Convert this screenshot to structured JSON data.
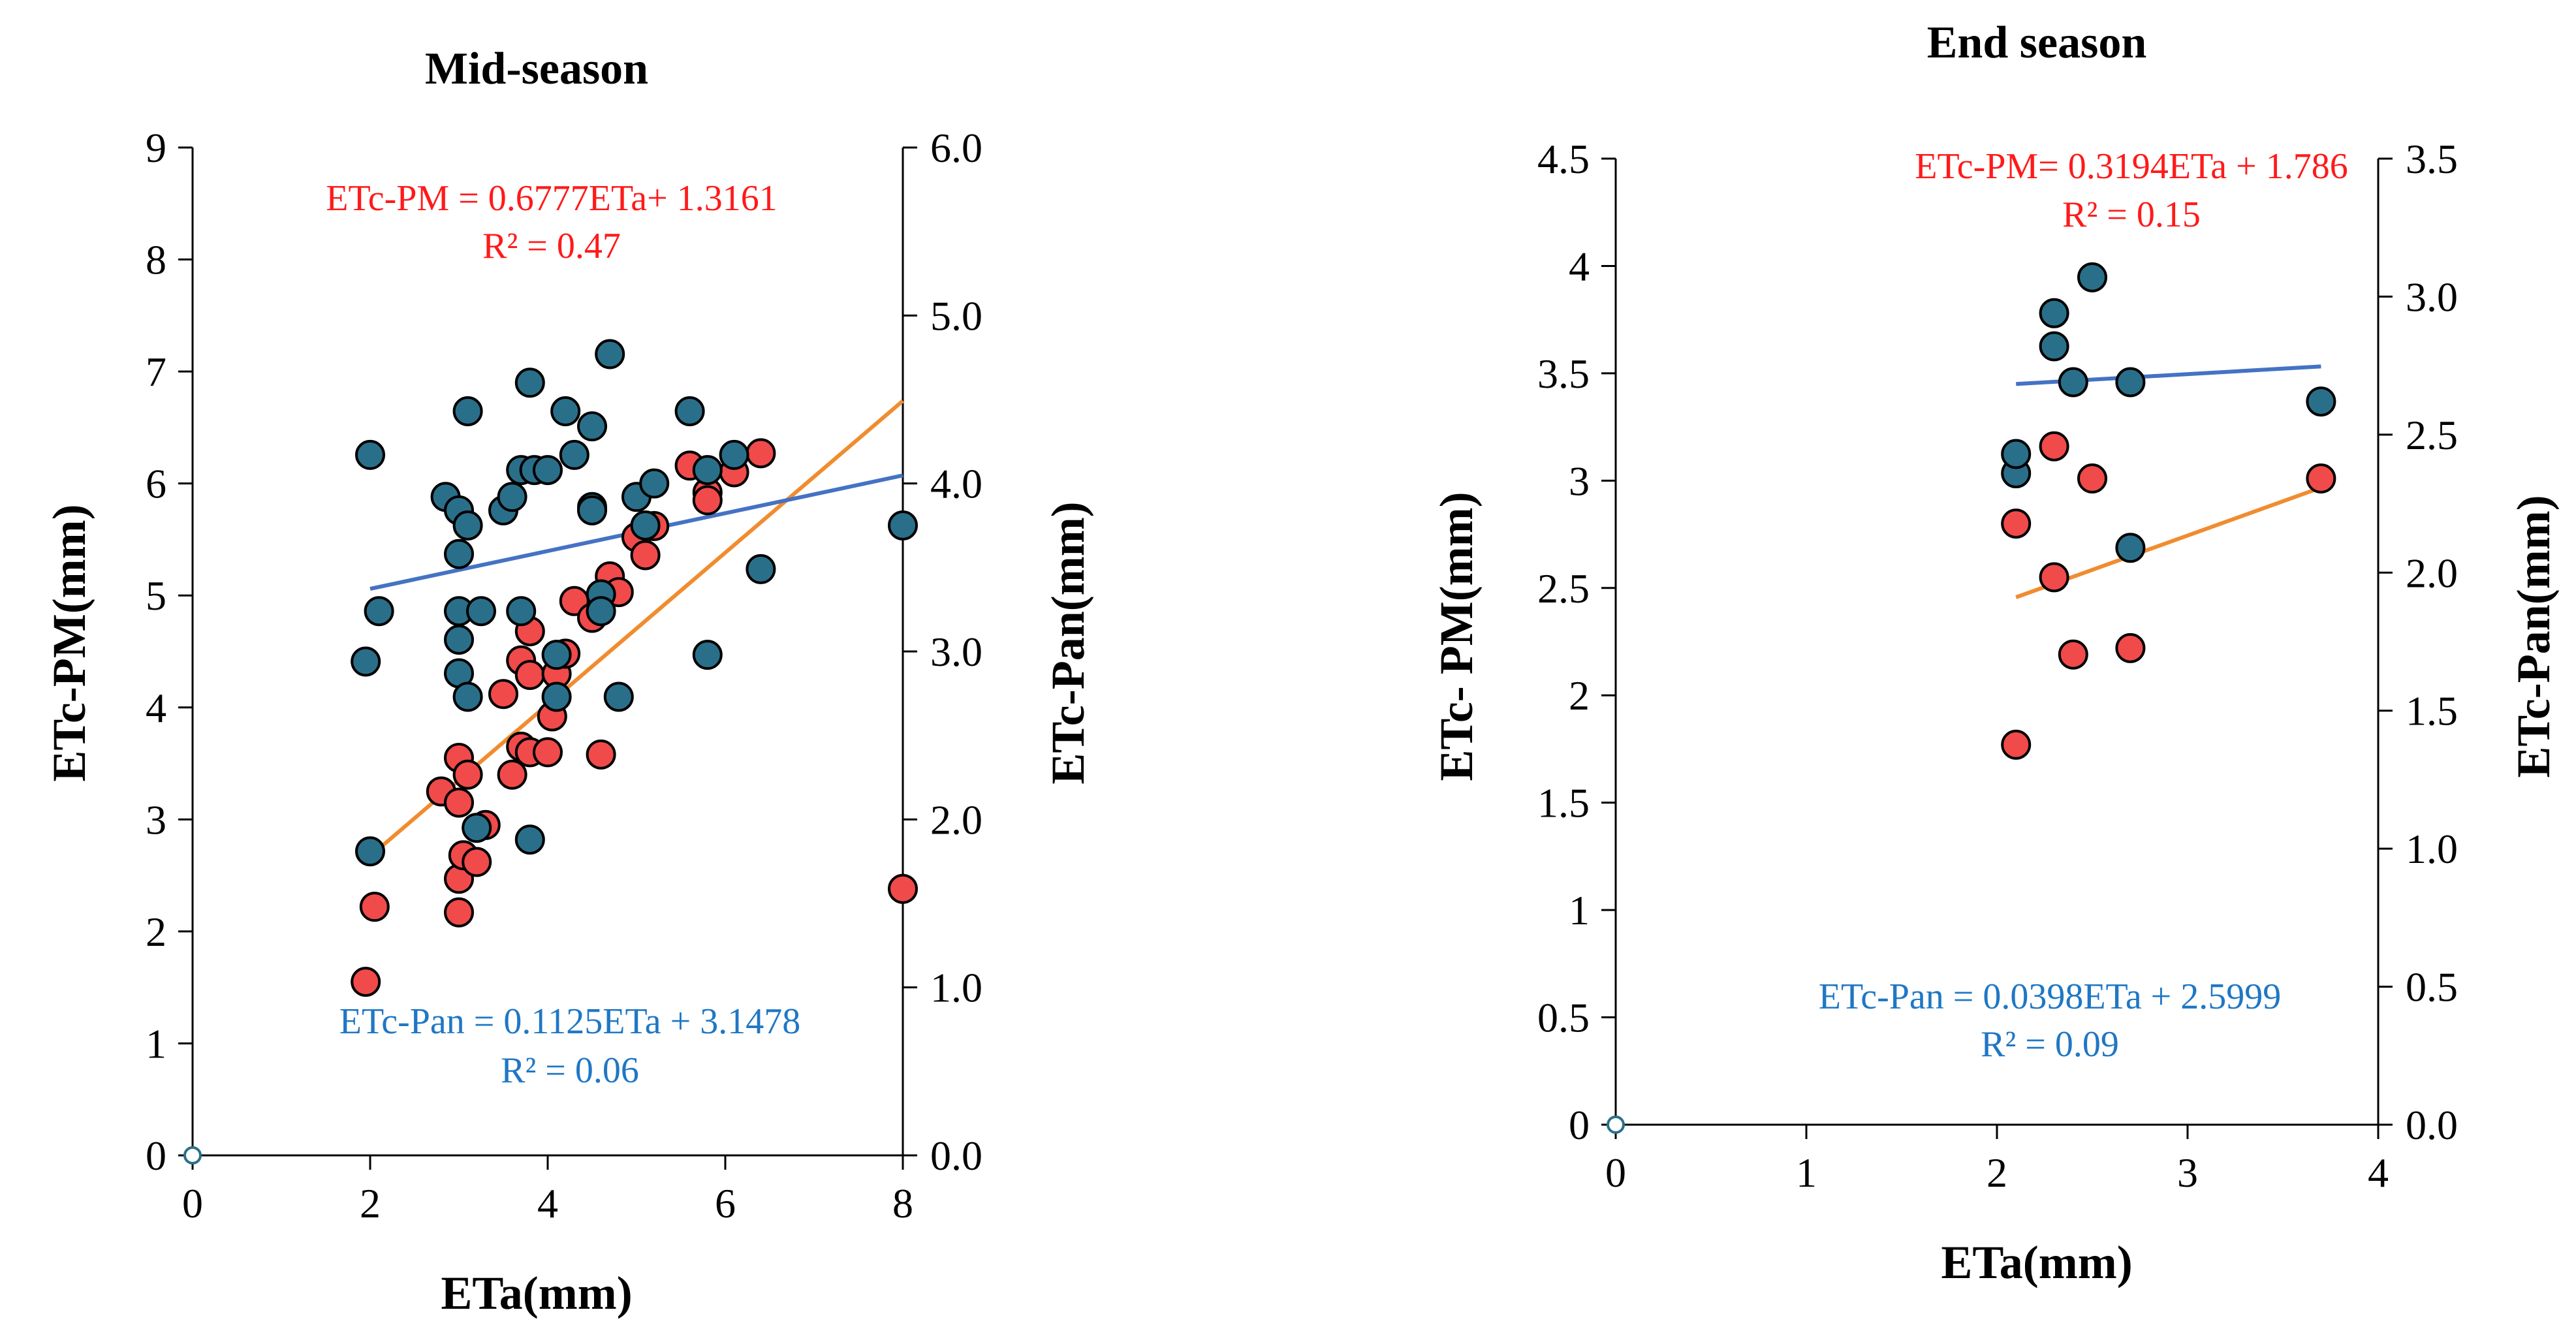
{
  "colors": {
    "pm_series": "#f04a4a",
    "pan_series": "#2a6f8a",
    "pm_trend": "#f08c30",
    "pan_trend": "#4472c4",
    "pm_equation": "#ff1a1a",
    "pan_equation": "#1f77c4",
    "marker_edge": "#000000"
  },
  "chart_data": [
    {
      "type": "scatter",
      "title": "Mid-season",
      "xlabel": "ETa(mm)",
      "ylabel_left": "ETc-PM(mm)",
      "ylabel_right": "ETc-Pan(mm)",
      "xlim": [
        0,
        8
      ],
      "ylim_left": [
        0,
        9
      ],
      "ylim_right": [
        0,
        6
      ],
      "xticks": [
        "0",
        "2",
        "4",
        "6",
        "8"
      ],
      "yticks_left": [
        "0",
        "1",
        "2",
        "3",
        "4",
        "5",
        "6",
        "7",
        "8",
        "9"
      ],
      "yticks_right": [
        "0.0",
        "1.0",
        "2.0",
        "3.0",
        "4.0",
        "5.0",
        "6.0"
      ],
      "equation_pm": "ETc-PM = 0.6777ETa+ 1.3161",
      "r2_pm": "R² = 0.47",
      "equation_pan": "ETc-Pan = 0.1125ETa + 3.1478",
      "r2_pan": "R² = 0.06",
      "trend_pm": {
        "slope": 0.6777,
        "intercept": 1.3161,
        "x_range": [
          1.95,
          8.0
        ],
        "axis": "left"
      },
      "trend_pan": {
        "slope": 0.1125,
        "intercept": 3.1478,
        "x_range": [
          2.0,
          8.0
        ],
        "axis": "right"
      },
      "series": [
        {
          "name": "ETc-PM",
          "axis": "left",
          "x": [
            1.95,
            2.05,
            2.8,
            3.0,
            3.0,
            3.0,
            3.0,
            3.05,
            3.1,
            3.2,
            3.3,
            3.5,
            3.6,
            3.7,
            3.7,
            3.8,
            3.8,
            3.8,
            4.0,
            4.05,
            4.1,
            4.2,
            4.3,
            4.5,
            4.6,
            4.7,
            4.8,
            5.0,
            5.1,
            5.2,
            5.6,
            5.8,
            5.8,
            6.1,
            6.4,
            8.0
          ],
          "y": [
            1.55,
            2.22,
            3.25,
            3.55,
            3.15,
            2.47,
            2.17,
            2.68,
            3.4,
            2.62,
            2.95,
            4.12,
            3.4,
            3.65,
            4.42,
            4.29,
            4.68,
            3.6,
            3.6,
            3.92,
            4.3,
            4.48,
            4.95,
            4.8,
            3.58,
            5.17,
            5.03,
            5.52,
            5.36,
            5.62,
            6.16,
            5.92,
            5.85,
            6.1,
            6.27,
            2.38
          ]
        },
        {
          "name": "ETc-Pan",
          "axis": "right",
          "x": [
            1.95,
            2.0,
            2.0,
            2.1,
            2.85,
            3.0,
            3.0,
            3.0,
            3.0,
            3.0,
            3.1,
            3.1,
            3.1,
            3.2,
            3.25,
            3.5,
            3.6,
            3.7,
            3.7,
            3.8,
            3.8,
            3.85,
            4.0,
            4.1,
            4.1,
            4.2,
            4.3,
            4.5,
            4.5,
            4.5,
            4.6,
            4.6,
            4.7,
            4.8,
            5.0,
            5.1,
            5.2,
            5.6,
            5.8,
            5.8,
            6.1,
            6.4,
            8.0
          ],
          "y": [
            2.94,
            1.81,
            4.17,
            3.24,
            3.92,
            3.84,
            3.58,
            3.24,
            3.07,
            2.87,
            4.43,
            3.75,
            2.73,
            1.95,
            3.24,
            3.84,
            3.92,
            3.24,
            4.08,
            4.6,
            1.88,
            4.08,
            4.08,
            2.98,
            2.73,
            4.43,
            4.17,
            4.34,
            3.86,
            3.84,
            3.34,
            3.24,
            4.77,
            2.73,
            3.92,
            3.75,
            4.0,
            4.43,
            4.08,
            2.98,
            4.17,
            3.49,
            3.75
          ]
        }
      ]
    },
    {
      "type": "scatter",
      "title": "End season",
      "xlabel": "ETa(mm)",
      "ylabel_left": "ETc- PM(mm)",
      "ylabel_right": "ETc-Pan(mm)",
      "xlim": [
        0,
        4
      ],
      "ylim_left": [
        0,
        4.5
      ],
      "ylim_right": [
        0,
        3.5
      ],
      "xticks": [
        "0",
        "1",
        "2",
        "3",
        "4"
      ],
      "yticks_left": [
        "0",
        "0.5",
        "1",
        "1.5",
        "2",
        "2.5",
        "3",
        "3.5",
        "4",
        "4.5"
      ],
      "yticks_right": [
        "0.0",
        "0.5",
        "1.0",
        "1.5",
        "2.0",
        "2.5",
        "3.0",
        "3.5"
      ],
      "equation_pm": "ETc-PM= 0.3194ETa + 1.786",
      "r2_pm": "R² = 0.15",
      "equation_pan": "ETc-Pan = 0.0398ETa + 2.5999",
      "r2_pan": "R² = 0.09",
      "trend_pm": {
        "slope": 0.3194,
        "intercept": 1.786,
        "x_range": [
          2.1,
          3.7
        ],
        "axis": "left"
      },
      "trend_pan": {
        "slope": 0.0398,
        "intercept": 2.5999,
        "x_range": [
          2.1,
          3.7
        ],
        "axis": "right"
      },
      "series": [
        {
          "name": "ETc-PM",
          "axis": "left",
          "x": [
            2.1,
            2.1,
            2.3,
            2.3,
            2.4,
            2.5,
            2.7,
            3.7
          ],
          "y": [
            1.77,
            2.8,
            3.16,
            2.55,
            2.19,
            3.01,
            2.22,
            3.01
          ]
        },
        {
          "name": "ETc-Pan",
          "axis": "right",
          "x": [
            2.1,
            2.1,
            2.3,
            2.3,
            2.4,
            2.5,
            2.7,
            2.7,
            3.7
          ],
          "y": [
            2.36,
            2.43,
            2.94,
            2.82,
            2.69,
            3.07,
            2.69,
            2.09,
            2.62
          ]
        }
      ]
    }
  ]
}
